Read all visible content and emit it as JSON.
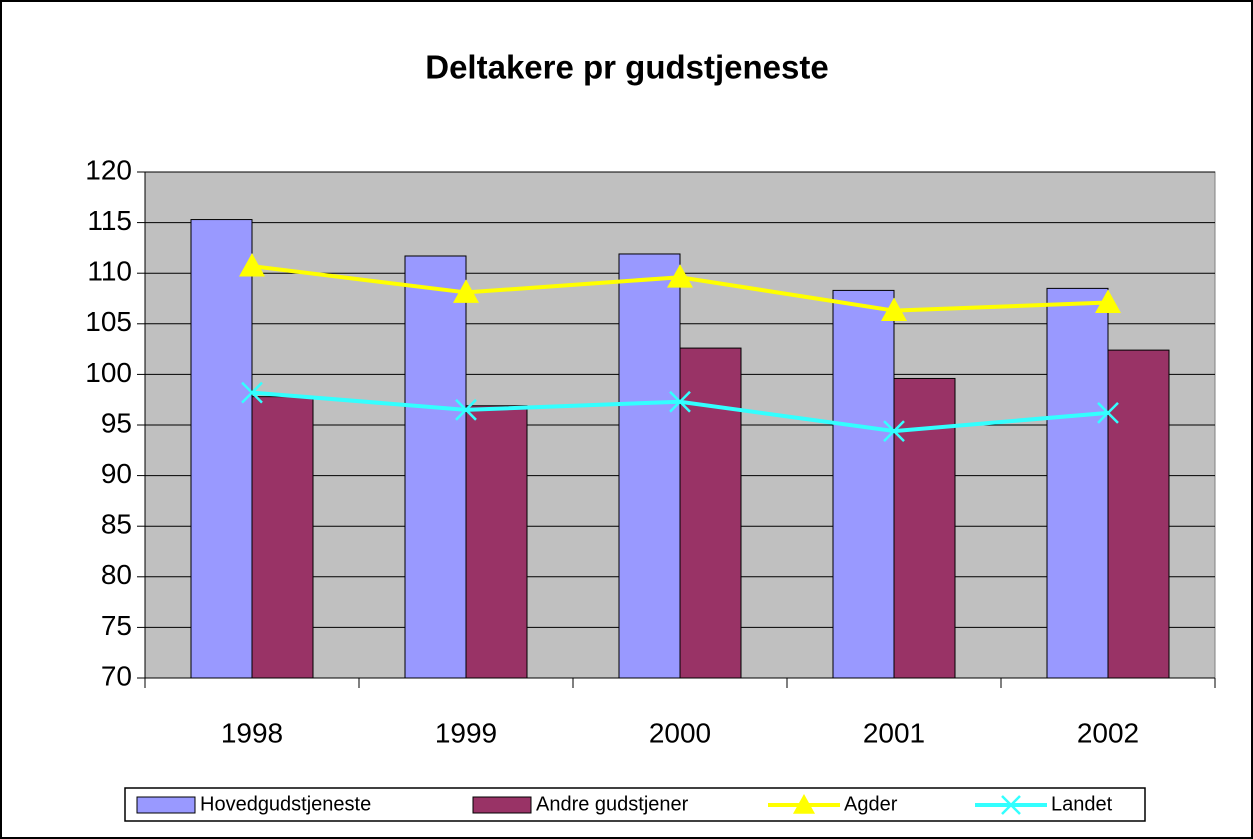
{
  "chart_data": {
    "type": "bar",
    "title": "Deltakere pr gudstjeneste",
    "categories": [
      "1998",
      "1999",
      "2000",
      "2001",
      "2002"
    ],
    "series": [
      {
        "name": "Hovedgudstjeneste",
        "type": "bar",
        "color": "#9999ff",
        "values": [
          115.3,
          111.7,
          111.9,
          108.3,
          108.5
        ]
      },
      {
        "name": "Andre gudstjener",
        "type": "bar",
        "color": "#993366",
        "values": [
          97.8,
          96.9,
          102.6,
          99.6,
          102.4
        ]
      },
      {
        "name": "Agder",
        "type": "line",
        "marker": "triangle",
        "color": "#ffff00",
        "values": [
          110.7,
          108.1,
          109.6,
          106.3,
          107.1
        ]
      },
      {
        "name": "Landet",
        "type": "line",
        "marker": "x",
        "color": "#33ffff",
        "values": [
          98.2,
          96.5,
          97.3,
          94.4,
          96.2
        ]
      }
    ],
    "ylim": [
      70,
      120
    ],
    "yticks": [
      70,
      75,
      80,
      85,
      90,
      95,
      100,
      105,
      110,
      115,
      120
    ],
    "grid": true,
    "legend": "bottom"
  }
}
